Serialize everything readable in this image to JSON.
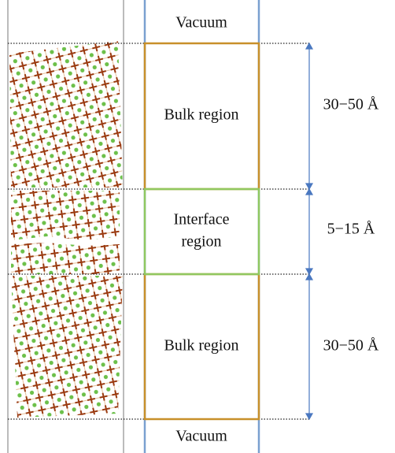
{
  "vacuum_top": "Vacuum",
  "regions": [
    {
      "label": [
        "Bulk region"
      ],
      "thickness": "30−50 Å"
    },
    {
      "label": [
        "Interface",
        "region"
      ],
      "thickness": "5−15 Å"
    },
    {
      "label": [
        "Bulk region"
      ],
      "thickness": "30−50 Å"
    }
  ],
  "vacuum_bottom": "Vacuum"
}
